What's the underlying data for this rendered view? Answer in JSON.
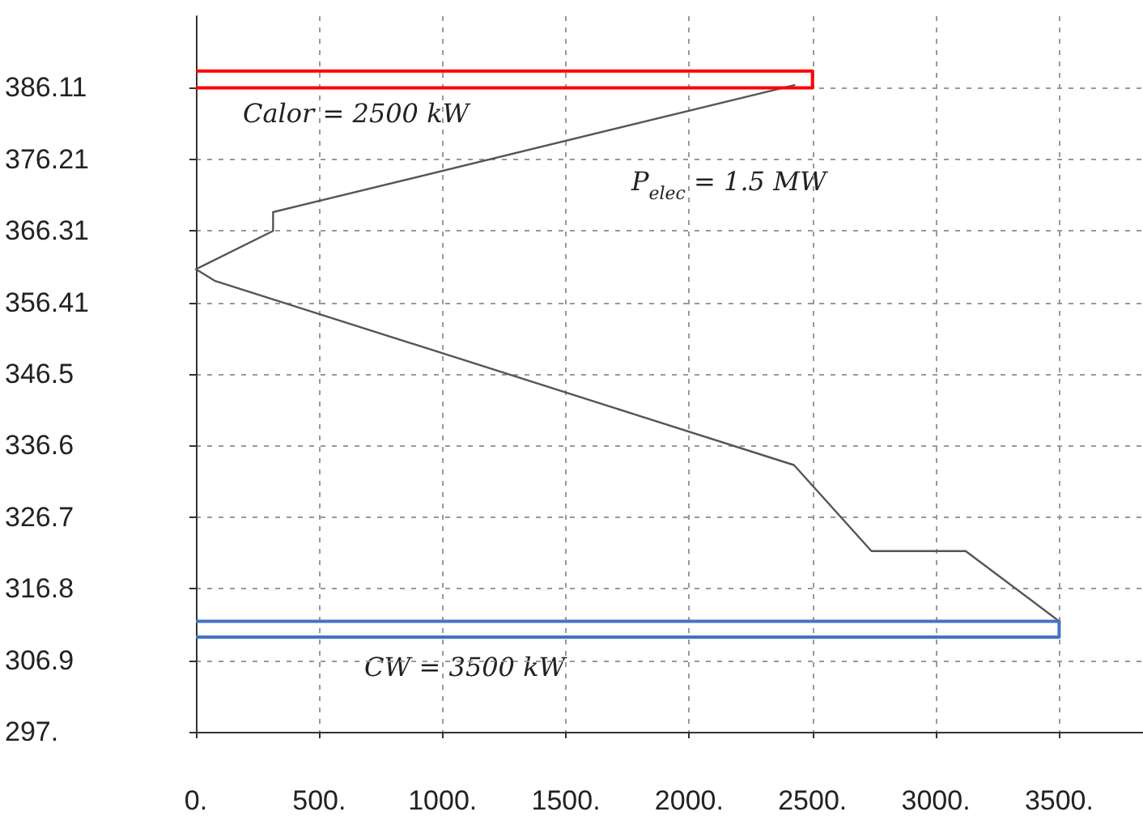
{
  "chart_data": {
    "type": "line",
    "xlim": [
      0,
      3840
    ],
    "ylim": [
      297,
      396
    ],
    "xticks": [
      {
        "value": 0,
        "label": "0."
      },
      {
        "value": 500,
        "label": "500."
      },
      {
        "value": 1000,
        "label": "1000."
      },
      {
        "value": 1500,
        "label": "1500."
      },
      {
        "value": 2000,
        "label": "2000."
      },
      {
        "value": 2500,
        "label": "2500."
      },
      {
        "value": 3000,
        "label": "3000."
      },
      {
        "value": 3500,
        "label": "3500."
      }
    ],
    "yticks": [
      {
        "value": 297,
        "label": "297."
      },
      {
        "value": 306.9,
        "label": "306.9"
      },
      {
        "value": 316.8,
        "label": "316.8"
      },
      {
        "value": 326.7,
        "label": "326.7"
      },
      {
        "value": 336.6,
        "label": "336.6"
      },
      {
        "value": 346.5,
        "label": "346.5"
      },
      {
        "value": 356.41,
        "label": "356.41"
      },
      {
        "value": 366.31,
        "label": "366.31"
      },
      {
        "value": 376.21,
        "label": "376.21"
      },
      {
        "value": 386.11,
        "label": "386.11"
      }
    ],
    "grid": true,
    "marker": "none",
    "line_style": "solid",
    "series": [
      {
        "color": "#555555",
        "x": [
          2430,
          313,
          313,
          0,
          76,
          2425,
          2739,
          3121,
          3500
        ],
        "values": [
          386.5,
          368.9,
          366.3,
          361.0,
          359.4,
          333.9,
          322.0,
          322.0,
          312.3
        ]
      },
      {
        "color": "#ff0000",
        "x": [
          0,
          2500,
          2500,
          0
        ],
        "values": [
          386.1,
          386.1,
          388.4,
          388.4
        ]
      },
      {
        "color": "#4472c4",
        "x": [
          0,
          3500,
          3500,
          0
        ],
        "values": [
          310.1,
          310.1,
          312.3,
          312.3
        ]
      }
    ],
    "annotations": [
      "Calor = 2500 kW",
      "P$_{elec}$ = 1.5 MW",
      "CW = 3500 kW"
    ]
  }
}
